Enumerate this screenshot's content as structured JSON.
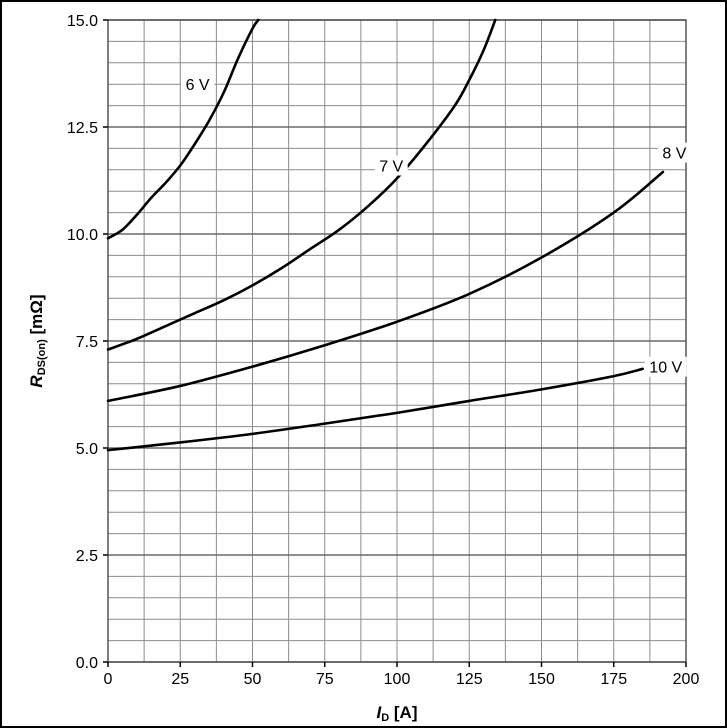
{
  "chart_data": {
    "type": "line",
    "xlabel_main": "I",
    "xlabel_sub": "D",
    "xlabel_unit": " [A]",
    "ylabel_main": "R",
    "ylabel_sub": "DS(on)",
    "ylabel_unit": "  [mΩ]",
    "xlim": [
      0,
      200
    ],
    "ylim": [
      0,
      15
    ],
    "x_ticks": [
      0,
      25,
      50,
      75,
      100,
      125,
      150,
      175,
      200
    ],
    "x_tick_labels": [
      "0",
      "25",
      "50",
      "75",
      "100",
      "125",
      "150",
      "175",
      "200"
    ],
    "y_ticks": [
      0,
      2.5,
      5,
      7.5,
      10,
      12.5,
      15
    ],
    "y_tick_labels": [
      "0.0",
      "2.5",
      "5.0",
      "7.5",
      "10.0",
      "12.5",
      "15.0"
    ],
    "grid": true,
    "series": [
      {
        "name": "6 V",
        "x": [
          0,
          5,
          10,
          15,
          20,
          25,
          30,
          35,
          40,
          45,
          50,
          52
        ],
        "y": [
          9.9,
          10.1,
          10.45,
          10.85,
          11.2,
          11.6,
          12.1,
          12.65,
          13.3,
          14.1,
          14.8,
          15.0
        ]
      },
      {
        "name": "7 V",
        "x": [
          0,
          10,
          20,
          30,
          40,
          50,
          60,
          70,
          80,
          90,
          100,
          110,
          120,
          125,
          130,
          134
        ],
        "y": [
          7.3,
          7.55,
          7.85,
          8.15,
          8.45,
          8.8,
          9.2,
          9.65,
          10.1,
          10.65,
          11.3,
          12.1,
          13.0,
          13.6,
          14.3,
          15.0
        ]
      },
      {
        "name": "8 V",
        "x": [
          0,
          25,
          50,
          75,
          100,
          125,
          150,
          175,
          192
        ],
        "y": [
          6.1,
          6.45,
          6.9,
          7.4,
          7.95,
          8.6,
          9.45,
          10.5,
          11.45
        ]
      },
      {
        "name": "10 V",
        "x": [
          0,
          25,
          50,
          75,
          100,
          125,
          150,
          175,
          185
        ],
        "y": [
          4.95,
          5.13,
          5.33,
          5.57,
          5.82,
          6.1,
          6.37,
          6.68,
          6.85
        ]
      }
    ],
    "labels": [
      {
        "text": "6 V",
        "x": 31,
        "y": 13.5
      },
      {
        "text": "7 V",
        "x": 98,
        "y": 11.6
      },
      {
        "text": "8 V",
        "x": 196,
        "y": 11.9
      },
      {
        "text": "10 V",
        "x": 193,
        "y": 6.9
      }
    ]
  }
}
